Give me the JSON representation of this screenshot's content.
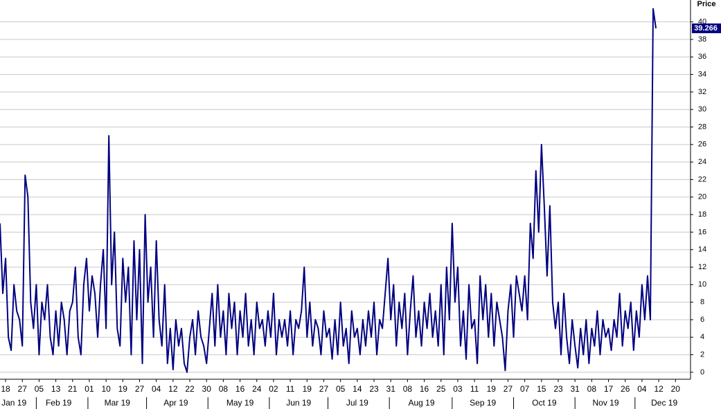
{
  "chart_data": {
    "type": "line",
    "y_label": "Price",
    "ylim": [
      -0.8,
      42.5
    ],
    "yticks": [
      0,
      2,
      4,
      6,
      8,
      10,
      12,
      14,
      16,
      18,
      20,
      22,
      24,
      26,
      28,
      30,
      32,
      34,
      36,
      38,
      40
    ],
    "grid": true,
    "categories": [
      null,
      null,
      "18",
      null,
      null,
      null,
      null,
      null,
      "27",
      null,
      null,
      null,
      null,
      null,
      "05",
      null,
      null,
      null,
      null,
      null,
      "13",
      null,
      null,
      null,
      null,
      null,
      "21",
      null,
      null,
      null,
      null,
      null,
      "01",
      null,
      null,
      null,
      null,
      null,
      "10",
      null,
      null,
      null,
      null,
      null,
      "19",
      null,
      null,
      null,
      null,
      null,
      "27",
      null,
      null,
      null,
      null,
      null,
      "04",
      null,
      null,
      null,
      null,
      null,
      "12",
      null,
      null,
      null,
      null,
      null,
      "22",
      null,
      null,
      null,
      null,
      null,
      "30",
      null,
      null,
      null,
      null,
      null,
      "08",
      null,
      null,
      null,
      null,
      null,
      "16",
      null,
      null,
      null,
      null,
      null,
      "24",
      null,
      null,
      null,
      null,
      null,
      "02",
      null,
      null,
      null,
      null,
      null,
      "11",
      null,
      null,
      null,
      null,
      null,
      "19",
      null,
      null,
      null,
      null,
      null,
      "27",
      null,
      null,
      null,
      null,
      null,
      "05",
      null,
      null,
      null,
      null,
      null,
      "14",
      null,
      null,
      null,
      null,
      null,
      "23",
      null,
      null,
      null,
      null,
      null,
      "31",
      null,
      null,
      null,
      null,
      null,
      "08",
      null,
      null,
      null,
      null,
      null,
      "16",
      null,
      null,
      null,
      null,
      null,
      "25",
      null,
      null,
      null,
      null,
      null,
      "03",
      null,
      null,
      null,
      null,
      null,
      "11",
      null,
      null,
      null,
      null,
      null,
      "19",
      null,
      null,
      null,
      null,
      null,
      "27",
      null,
      null,
      null,
      null,
      null,
      "07",
      null,
      null,
      null,
      null,
      null,
      "15",
      null,
      null,
      null,
      null,
      null,
      "23",
      null,
      null,
      null,
      null,
      null,
      "31",
      null,
      null,
      null,
      null,
      null,
      "08",
      null,
      null,
      null,
      null,
      null,
      "17",
      null,
      null,
      null,
      null,
      null,
      "26",
      null,
      null,
      null,
      null,
      null,
      "04",
      null,
      null,
      null,
      null,
      null,
      "12",
      null,
      null,
      null,
      null,
      null,
      "20"
    ],
    "months": [
      null,
      null,
      null,
      null,
      null,
      "Jan 19",
      null,
      null,
      null,
      null,
      null,
      null,
      null,
      null,
      null,
      null,
      null,
      null,
      null,
      null,
      null,
      "Feb 19",
      null,
      null,
      null,
      null,
      null,
      null,
      null,
      null,
      null,
      null,
      null,
      null,
      null,
      null,
      null,
      null,
      null,
      null,
      null,
      null,
      "Mar 19",
      null,
      null,
      null,
      null,
      null,
      null,
      null,
      null,
      null,
      null,
      null,
      null,
      null,
      null,
      null,
      null,
      null,
      null,
      null,
      null,
      "Apr 19",
      null,
      null,
      null,
      null,
      null,
      null,
      null,
      null,
      null,
      null,
      null,
      null,
      null,
      null,
      null,
      null,
      null,
      null,
      null,
      null,
      null,
      null,
      "May 19",
      null,
      null,
      null,
      null,
      null,
      null,
      null,
      null,
      null,
      null,
      null,
      null,
      null,
      null,
      null,
      null,
      null,
      null,
      null,
      null,
      "Jun 19",
      null,
      null,
      null,
      null,
      null,
      null,
      null,
      null,
      null,
      null,
      null,
      null,
      null,
      null,
      null,
      null,
      null,
      null,
      null,
      null,
      "Jul 19",
      null,
      null,
      null,
      null,
      null,
      null,
      null,
      null,
      null,
      null,
      null,
      null,
      null,
      null,
      null,
      null,
      null,
      null,
      null,
      null,
      null,
      null,
      "Aug 19",
      null,
      null,
      null,
      null,
      null,
      null,
      null,
      null,
      null,
      null,
      null,
      null,
      null,
      null,
      null,
      null,
      null,
      null,
      null,
      null,
      null,
      "Sep 19",
      null,
      null,
      null,
      null,
      null,
      null,
      null,
      null,
      null,
      null,
      null,
      null,
      null,
      null,
      null,
      null,
      null,
      null,
      null,
      null,
      null,
      "Oct 19",
      null,
      null,
      null,
      null,
      null,
      null,
      null,
      null,
      null,
      null,
      null,
      null,
      null,
      null,
      null,
      null,
      null,
      null,
      null,
      null,
      null,
      "Nov 19",
      null,
      null,
      null,
      null,
      null,
      null,
      null,
      null,
      null,
      null,
      null,
      null,
      null,
      null,
      null,
      null,
      null,
      null,
      null,
      null,
      "Dec 19",
      null,
      null,
      null,
      null
    ],
    "series": [
      {
        "color": "#000080",
        "values": [
          17,
          9,
          13,
          4,
          2.5,
          10,
          7,
          6,
          3,
          22.5,
          20,
          8,
          5,
          10,
          2,
          8,
          6,
          10,
          4,
          2,
          7,
          3,
          8,
          6,
          2,
          7,
          8,
          12,
          4,
          2,
          10,
          13,
          7,
          11,
          9,
          4,
          10,
          14,
          5,
          27,
          10,
          16,
          5,
          3,
          13,
          8,
          12,
          2,
          15,
          6,
          14,
          1,
          18,
          8,
          12,
          4,
          15,
          6,
          3,
          10,
          1,
          5,
          0.3,
          6,
          3,
          5,
          1,
          0,
          4,
          6,
          2,
          7,
          4,
          3,
          1,
          5,
          9,
          3,
          10,
          4,
          7,
          2,
          9,
          5,
          8,
          2,
          7,
          4,
          9,
          3,
          6,
          2,
          8,
          5,
          6,
          3,
          7,
          4,
          9,
          2,
          6,
          4,
          6,
          3,
          7,
          2,
          6,
          5,
          7,
          12,
          4,
          8,
          3,
          6,
          5,
          2,
          7,
          4,
          5,
          1.5,
          6,
          2,
          8,
          3,
          5,
          1,
          7,
          4,
          5,
          2,
          6,
          3,
          7,
          4,
          8,
          2,
          6,
          5,
          9,
          13,
          6,
          10,
          3,
          8,
          5,
          9,
          2,
          7,
          11,
          4,
          7,
          3,
          8,
          5,
          9,
          4,
          7,
          3,
          10,
          2,
          12,
          6,
          17,
          8,
          12,
          3,
          7,
          1.5,
          10,
          5,
          6,
          1,
          11,
          6,
          10,
          4,
          9,
          3,
          8,
          6,
          4,
          0.2,
          7,
          10,
          4,
          11,
          9,
          7,
          11,
          6,
          17,
          13,
          23,
          16,
          26,
          19,
          11,
          19,
          8,
          5,
          8,
          2,
          9,
          4,
          1,
          6,
          3,
          0.5,
          5,
          2,
          6,
          1,
          5,
          3,
          7,
          2,
          6,
          4,
          5,
          2.5,
          6,
          4,
          9,
          3,
          7,
          5,
          8,
          2.5,
          7,
          4,
          10,
          6,
          11,
          6,
          41.5,
          39.266,
          null,
          null,
          null,
          null,
          null,
          null,
          null
        ]
      }
    ]
  }
}
